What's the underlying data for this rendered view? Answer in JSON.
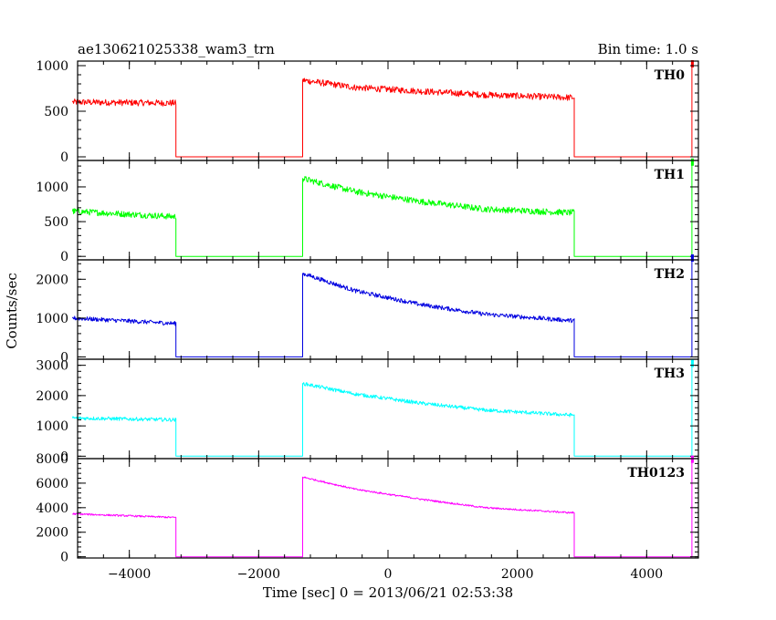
{
  "chart_data": {
    "type": "line",
    "title": "ae130621025338_wam3_trn",
    "bin_time_label": "Bin time: 1.0 s",
    "xlabel": "Time [sec] 0 = 2013/06/21 02:53:38",
    "ylabel": "Counts/sec",
    "xlim": [
      -4800,
      4800
    ],
    "x_ticks": [
      -4000,
      -2000,
      0,
      2000,
      4000
    ],
    "x_tick_labels": [
      "−4000",
      "−2000",
      "0",
      "2000",
      "4000"
    ],
    "grid": false,
    "panels": [
      {
        "name": "TH0",
        "color": "#ff0000",
        "ylim": [
          -40,
          1050
        ],
        "y_ticks": [
          0,
          500,
          1000
        ],
        "y_tick_labels": [
          "0",
          "500",
          "1000"
        ],
        "noise": 35,
        "points": [
          [
            -4880,
            600
          ],
          [
            -3280,
            590
          ],
          [
            -3280,
            0
          ],
          [
            -1320,
            0
          ],
          [
            -1320,
            840
          ],
          [
            -500,
            760
          ],
          [
            500,
            720
          ],
          [
            1500,
            680
          ],
          [
            2800,
            650
          ],
          [
            2880,
            650
          ],
          [
            2880,
            0
          ],
          [
            4700,
            0
          ],
          [
            4700,
            1000
          ]
        ]
      },
      {
        "name": "TH1",
        "color": "#00ff00",
        "ylim": [
          -50,
          1380
        ],
        "y_ticks": [
          0,
          500,
          1000
        ],
        "y_tick_labels": [
          "0",
          "500",
          "1000"
        ],
        "noise": 45,
        "points": [
          [
            -4880,
            650
          ],
          [
            -3280,
            570
          ],
          [
            -3280,
            0
          ],
          [
            -1320,
            0
          ],
          [
            -1320,
            1120
          ],
          [
            -500,
            930
          ],
          [
            500,
            790
          ],
          [
            1500,
            680
          ],
          [
            2800,
            630
          ],
          [
            2880,
            630
          ],
          [
            2880,
            0
          ],
          [
            4700,
            0
          ],
          [
            4700,
            1330
          ]
        ]
      },
      {
        "name": "TH2",
        "color": "#0000e0",
        "ylim": [
          -60,
          2500
        ],
        "y_ticks": [
          0,
          1000,
          2000
        ],
        "y_tick_labels": [
          "0",
          "1000",
          "2000"
        ],
        "noise": 55,
        "points": [
          [
            -4880,
            1000
          ],
          [
            -3280,
            860
          ],
          [
            -3280,
            0
          ],
          [
            -1320,
            0
          ],
          [
            -1320,
            2150
          ],
          [
            -500,
            1700
          ],
          [
            500,
            1350
          ],
          [
            1500,
            1100
          ],
          [
            2800,
            940
          ],
          [
            2880,
            940
          ],
          [
            2880,
            0
          ],
          [
            4700,
            0
          ],
          [
            4700,
            2500
          ]
        ]
      },
      {
        "name": "TH3",
        "color": "#00ffff",
        "ylim": [
          -80,
          3200
        ],
        "y_ticks": [
          0,
          1000,
          2000,
          3000
        ],
        "y_tick_labels": [
          "0",
          "1000",
          "2000",
          "3000"
        ],
        "noise": 60,
        "points": [
          [
            -4880,
            1260
          ],
          [
            -3280,
            1200
          ],
          [
            -3280,
            0
          ],
          [
            -1320,
            0
          ],
          [
            -1320,
            2400
          ],
          [
            -500,
            2050
          ],
          [
            500,
            1750
          ],
          [
            1500,
            1520
          ],
          [
            2800,
            1360
          ],
          [
            2880,
            1360
          ],
          [
            2880,
            0
          ],
          [
            4700,
            0
          ],
          [
            4700,
            3000
          ]
        ]
      },
      {
        "name": "TH0123",
        "color": "#ff00ff",
        "ylim": [
          -100,
          8000
        ],
        "y_ticks": [
          0,
          2000,
          4000,
          6000,
          8000
        ],
        "y_tick_labels": [
          "0",
          "2000",
          "4000",
          "6000",
          "8000"
        ],
        "noise": 70,
        "points": [
          [
            -4880,
            3500
          ],
          [
            -3280,
            3200
          ],
          [
            -3280,
            0
          ],
          [
            -1320,
            0
          ],
          [
            -1320,
            6500
          ],
          [
            -500,
            5500
          ],
          [
            500,
            4700
          ],
          [
            1500,
            4000
          ],
          [
            2800,
            3600
          ],
          [
            2880,
            3600
          ],
          [
            2880,
            0
          ],
          [
            4700,
            0
          ],
          [
            4700,
            7800
          ]
        ]
      }
    ]
  }
}
